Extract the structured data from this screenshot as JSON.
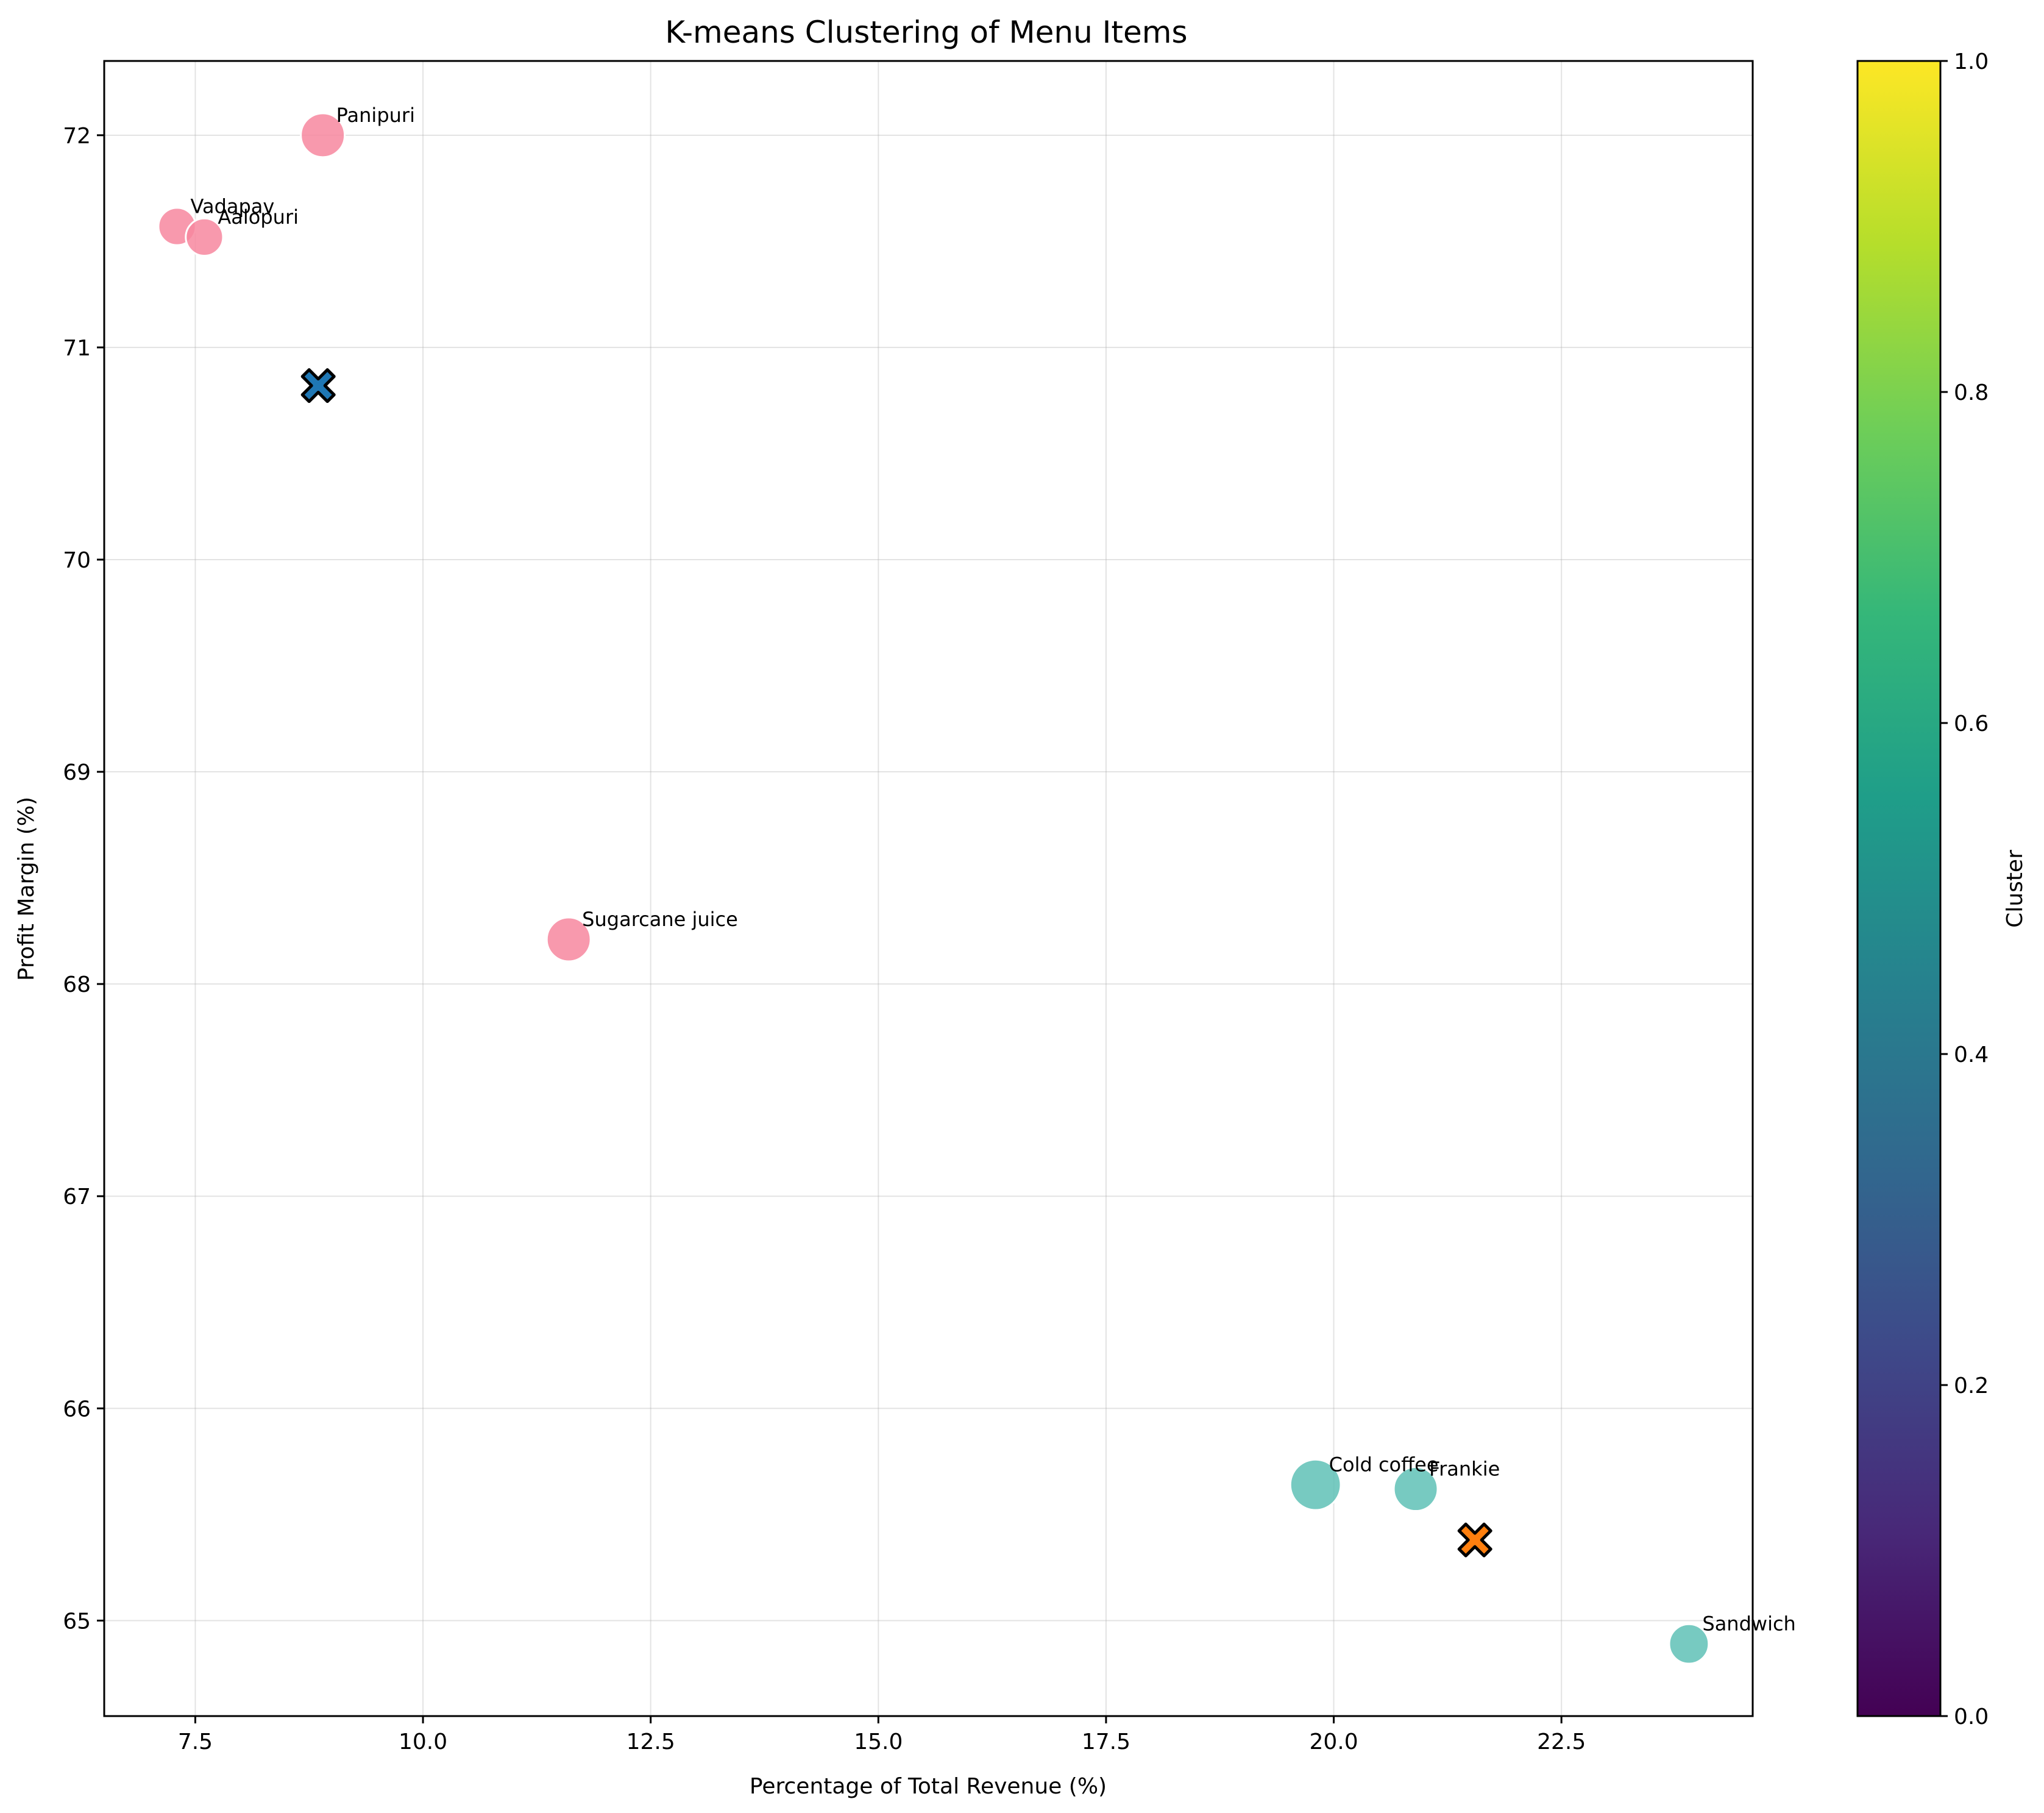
{
  "colors": {
    "cluster_0_points": "#f7879f",
    "cluster_1_points": "#5fc1b6",
    "centroid_0": "#1f77b4",
    "centroid_1": "#ff7f0e",
    "colorbar_gradient": [
      "#440154",
      "#482878",
      "#3e4989",
      "#31688e",
      "#26828e",
      "#1f9e89",
      "#35b779",
      "#6ece58",
      "#b5de2b",
      "#fde725"
    ]
  },
  "chart_data": {
    "type": "scatter",
    "title": "K-means Clustering of Menu Items",
    "xlabel": "Percentage of Total Revenue (%)",
    "ylabel": "Profit Margin (%)",
    "xlim": [
      6.5,
      24.6
    ],
    "ylim": [
      64.55,
      72.35
    ],
    "xticks": [
      7.5,
      10.0,
      12.5,
      15.0,
      17.5,
      20.0,
      22.5
    ],
    "xtick_labels": [
      "7.5",
      "10.0",
      "12.5",
      "15.0",
      "17.5",
      "20.0",
      "22.5"
    ],
    "yticks": [
      65,
      66,
      67,
      68,
      69,
      70,
      71,
      72
    ],
    "ytick_labels": [
      "65",
      "66",
      "67",
      "68",
      "69",
      "70",
      "71",
      "72"
    ],
    "grid": true,
    "points": [
      {
        "label": "Panipuri",
        "x": 8.9,
        "y": 72.0,
        "cluster": 0,
        "size": 1.0
      },
      {
        "label": "Vadapav",
        "x": 7.3,
        "y": 71.57,
        "cluster": 0,
        "size": 0.85
      },
      {
        "label": "Aalopuri",
        "x": 7.6,
        "y": 71.52,
        "cluster": 0,
        "size": 0.85
      },
      {
        "label": "Sugarcane juice",
        "x": 11.6,
        "y": 68.21,
        "cluster": 0,
        "size": 1.0
      },
      {
        "label": "Cold coffee",
        "x": 19.8,
        "y": 65.64,
        "cluster": 1,
        "size": 1.15
      },
      {
        "label": "Frankie",
        "x": 20.9,
        "y": 65.62,
        "cluster": 1,
        "size": 1.0
      },
      {
        "label": "Sandwich",
        "x": 23.9,
        "y": 64.89,
        "cluster": 1,
        "size": 0.9
      }
    ],
    "centroids": [
      {
        "x": 8.85,
        "y": 70.82,
        "cluster": 0
      },
      {
        "x": 21.55,
        "y": 65.38,
        "cluster": 1
      }
    ],
    "colorbar": {
      "label": "Cluster",
      "range": [
        0.0,
        1.0
      ],
      "ticks": [
        0.0,
        0.2,
        0.4,
        0.6,
        0.8,
        1.0
      ],
      "tick_labels": [
        "0.0",
        "0.2",
        "0.4",
        "0.6",
        "0.8",
        "1.0"
      ]
    }
  }
}
